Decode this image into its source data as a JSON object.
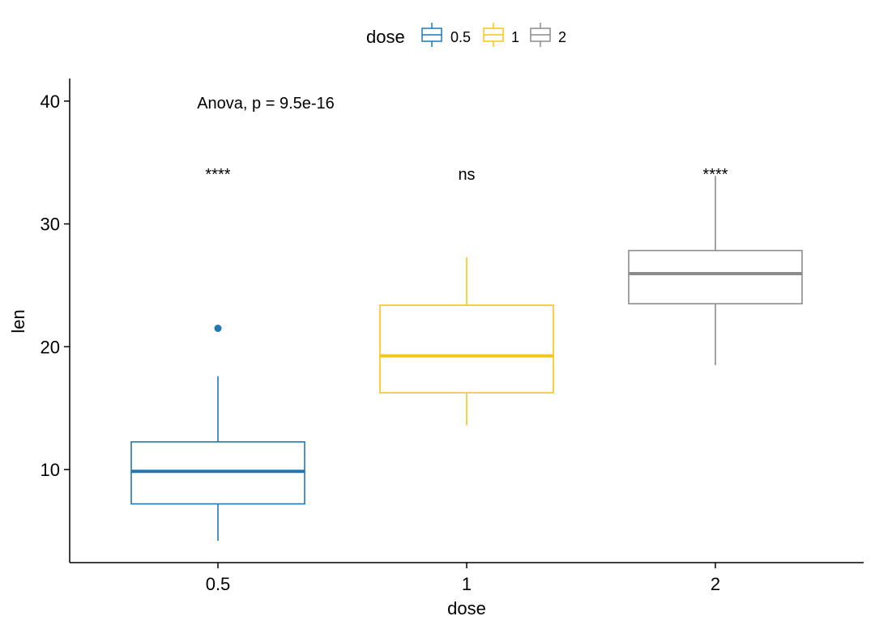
{
  "chart_data": {
    "type": "boxplot",
    "xlabel": "dose",
    "ylabel": "len",
    "categories": [
      "0.5",
      "1",
      "2"
    ],
    "yticks": [
      10,
      20,
      30,
      40
    ],
    "ylim": [
      3,
      42
    ],
    "legend": {
      "title": "dose",
      "position": "top",
      "entries": [
        "0.5",
        "1",
        "2"
      ]
    },
    "boxes": [
      {
        "category": "0.5",
        "whisker_low": 4.2,
        "q1": 7.2,
        "median": 9.85,
        "q3": 12.25,
        "whisker_high": 17.6,
        "outliers": [
          21.5
        ],
        "color": "#1f77b4",
        "label": "****"
      },
      {
        "category": "1",
        "whisker_low": 13.6,
        "q1": 16.25,
        "median": 19.25,
        "q3": 23.38,
        "whisker_high": 27.3,
        "outliers": [],
        "color": "#f5c518",
        "label": "ns"
      },
      {
        "category": "2",
        "whisker_low": 18.5,
        "q1": 23.5,
        "median": 25.95,
        "q3": 27.83,
        "whisker_high": 33.9,
        "outliers": [],
        "color": "#8c8c8c",
        "label": "****"
      }
    ],
    "annotation": "Anova, p = 9.5e-16",
    "annotation_y": 40,
    "labels_y": 34
  }
}
